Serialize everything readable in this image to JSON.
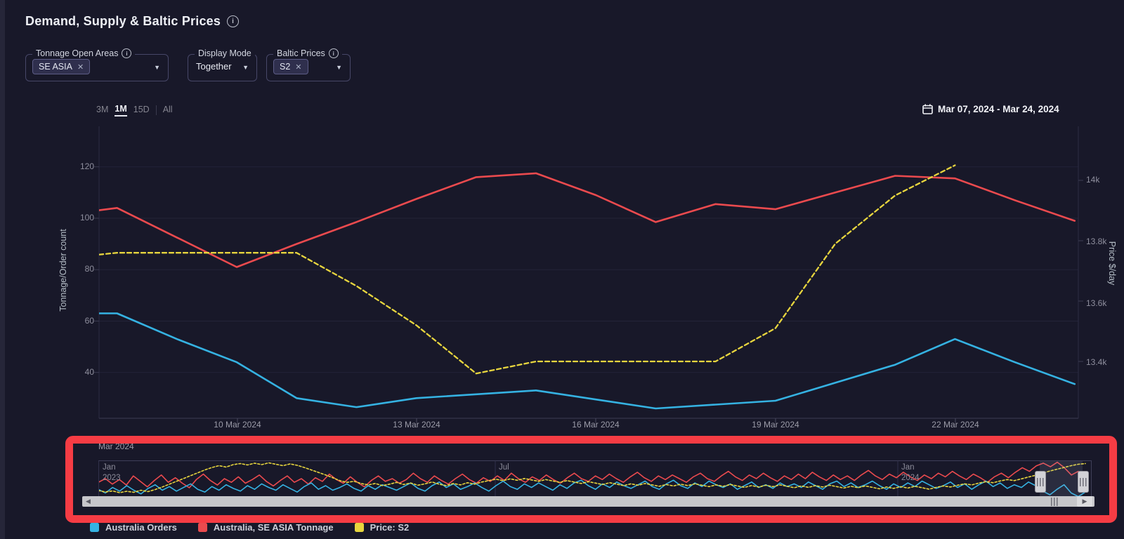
{
  "header": {
    "title": "Demand, Supply & Baltic Prices"
  },
  "icons": {
    "info": "i",
    "caret": "▼",
    "chip_close": "✕",
    "scroll_left": "◀",
    "scroll_right": "▶"
  },
  "filters": {
    "tonnage": {
      "label": "Tonnage Open Areas",
      "chip": "SE ASIA"
    },
    "display_mode": {
      "label": "Display Mode",
      "value": "Together"
    },
    "baltic": {
      "label": "Baltic Prices",
      "chip": "S2"
    }
  },
  "toolbar": {
    "ranges": {
      "r3m": "3M",
      "r1m": "1M",
      "r15d": "15D",
      "all": "All"
    },
    "active_range": "1M",
    "date_range": "Mar 07, 2024 - Mar 24, 2024"
  },
  "navigator_partial_label": "Mar 2024",
  "chart_data": {
    "type": "line",
    "title": "Demand, Supply & Baltic Prices",
    "x_tick_labels": [
      "10 Mar 2024",
      "13 Mar 2024",
      "16 Mar 2024",
      "19 Mar 2024",
      "22 Mar 2024"
    ],
    "dates": [
      "Mar 07",
      "Mar 08",
      "Mar 09",
      "Mar 10",
      "Mar 11",
      "Mar 12",
      "Mar 13",
      "Mar 14",
      "Mar 15",
      "Mar 16",
      "Mar 17",
      "Mar 18",
      "Mar 19",
      "Mar 20",
      "Mar 21",
      "Mar 22",
      "Mar 23",
      "Mar 24"
    ],
    "y_left": {
      "title": "Tonnage/Order count",
      "ticks": [
        "120",
        "100",
        "80",
        "60",
        "40"
      ],
      "values": [
        120,
        100,
        80,
        60,
        40
      ],
      "range": [
        20,
        130
      ]
    },
    "y_right": {
      "title": "Price $/day",
      "ticks": [
        "14k",
        "13.8k",
        "13.6k",
        "13.4k"
      ],
      "values": [
        14000,
        13800,
        13600,
        13400
      ],
      "range": [
        13300,
        14100
      ]
    },
    "grid": true,
    "legend_position": "bottom",
    "series": [
      {
        "name": "Australia Orders",
        "color": "#35b2e2",
        "axis": "left",
        "dashed": false,
        "values": [
          63,
          63,
          53,
          44,
          30,
          26.5,
          30,
          31.5,
          33,
          29.5,
          26,
          27.5,
          29,
          36,
          43,
          53,
          44,
          35.5
        ]
      },
      {
        "name": "Australia, SE ASIA Tonnage",
        "color": "#ea4a4e",
        "axis": "left",
        "dashed": false,
        "values": [
          101,
          104,
          92.5,
          81,
          90,
          98.5,
          107.5,
          116,
          117.5,
          109,
          98.5,
          105.5,
          103.5,
          110,
          116.5,
          115.5,
          107,
          99
        ]
      },
      {
        "name": "Price: S2",
        "color": "#e7d53e",
        "axis": "right",
        "dashed": true,
        "values": [
          13740,
          13760,
          13760,
          13760,
          13760,
          13650,
          13520,
          13360,
          13400,
          13400,
          13400,
          13400,
          13510,
          13790,
          13950,
          14050,
          null,
          null
        ]
      }
    ],
    "navigator": {
      "x_labels": [
        [
          "Jan",
          "2023"
        ],
        [
          "Jul",
          ""
        ],
        [
          "Jan",
          "2024"
        ]
      ],
      "selected_range": "Mar 07, 2024 - Mar 24, 2024",
      "orders": [
        48,
        44,
        50,
        46,
        52,
        47,
        43,
        49,
        53,
        47,
        51,
        46,
        50,
        54,
        48,
        45,
        51,
        47,
        53,
        49,
        46,
        52,
        48,
        54,
        50,
        47,
        53,
        49,
        45,
        51,
        55,
        48,
        52,
        47,
        50,
        54,
        49,
        46,
        52,
        48,
        53,
        50,
        47,
        51,
        55,
        49,
        46,
        52,
        56,
        50,
        54,
        48,
        51,
        55,
        50,
        46,
        52,
        57,
        51,
        48,
        54,
        50,
        55,
        51,
        47,
        53,
        49,
        55,
        58,
        52,
        48,
        54,
        50,
        56,
        52,
        49,
        53,
        57,
        51,
        48,
        54,
        58,
        52,
        49,
        55,
        51,
        57,
        53,
        50,
        54,
        48,
        52,
        56,
        50,
        53,
        49,
        55,
        51,
        54,
        50,
        56,
        52,
        48,
        54,
        57,
        51,
        55,
        50,
        53,
        57,
        52,
        48,
        54,
        50,
        55,
        51,
        57,
        53,
        49,
        52,
        56,
        50,
        54,
        48,
        53,
        57,
        51,
        55,
        49,
        53,
        50,
        56,
        52,
        46,
        42,
        48,
        53,
        44,
        40,
        45
      ],
      "tonnage": [
        96,
        100,
        94,
        99,
        93,
        103,
        97,
        91,
        98,
        104,
        96,
        101,
        95,
        90,
        99,
        105,
        98,
        93,
        100,
        96,
        102,
        95,
        99,
        104,
        97,
        92,
        98,
        103,
        96,
        100,
        94,
        101,
        97,
        105,
        99,
        95,
        102,
        96,
        91,
        98,
        103,
        97,
        100,
        95,
        99,
        106,
        100,
        96,
        103,
        98,
        94,
        100,
        105,
        99,
        95,
        101,
        97,
        103,
        98,
        106,
        100,
        96,
        102,
        98,
        104,
        99,
        95,
        101,
        106,
        100,
        97,
        103,
        99,
        105,
        100,
        96,
        102,
        107,
        101,
        97,
        103,
        99,
        104,
        100,
        96,
        102,
        106,
        100,
        97,
        103,
        108,
        102,
        98,
        104,
        100,
        106,
        101,
        97,
        103,
        99,
        105,
        100,
        107,
        102,
        98,
        104,
        99,
        103,
        98,
        104,
        109,
        103,
        99,
        105,
        101,
        107,
        102,
        98,
        104,
        100,
        106,
        102,
        108,
        103,
        99,
        105,
        101,
        96,
        102,
        106,
        101,
        107,
        112,
        108,
        114,
        117,
        113,
        118,
        112,
        104,
        108,
        102
      ],
      "price_k": [
        13.32,
        13.28,
        13.31,
        13.26,
        13.3,
        13.27,
        13.33,
        13.29,
        13.35,
        13.42,
        13.5,
        13.58,
        13.66,
        13.74,
        13.82,
        13.9,
        13.97,
        14.02,
        13.98,
        14.05,
        14.08,
        14.04,
        14.09,
        14.05,
        14.1,
        14.06,
        14.02,
        14.07,
        14.03,
        13.97,
        13.9,
        13.83,
        13.76,
        13.68,
        13.6,
        13.55,
        13.58,
        13.52,
        13.48,
        13.52,
        13.46,
        13.5,
        13.55,
        13.49,
        13.53,
        13.47,
        13.51,
        13.56,
        13.5,
        13.46,
        13.52,
        13.48,
        13.54,
        13.5,
        13.56,
        13.6,
        13.64,
        13.6,
        13.65,
        13.61,
        13.66,
        13.62,
        13.58,
        13.63,
        13.59,
        13.55,
        13.6,
        13.56,
        13.52,
        13.57,
        13.53,
        13.49,
        13.54,
        13.5,
        13.46,
        13.51,
        13.47,
        13.52,
        13.48,
        13.44,
        13.49,
        13.45,
        13.5,
        13.46,
        13.51,
        13.47,
        13.43,
        13.48,
        13.44,
        13.49,
        13.45,
        13.41,
        13.46,
        13.42,
        13.47,
        13.43,
        13.48,
        13.44,
        13.4,
        13.45,
        13.41,
        13.46,
        13.42,
        13.47,
        13.43,
        13.39,
        13.44,
        13.4,
        13.45,
        13.41,
        13.37,
        13.42,
        13.38,
        13.43,
        13.39,
        13.44,
        13.4,
        13.36,
        13.41,
        13.45,
        13.42,
        13.47,
        13.51,
        13.48,
        13.53,
        13.57,
        13.54,
        13.59,
        13.63,
        13.6,
        13.65,
        13.7,
        13.75,
        13.81,
        13.87,
        13.92,
        13.97,
        14.02,
        14.06,
        14.08
      ]
    }
  }
}
